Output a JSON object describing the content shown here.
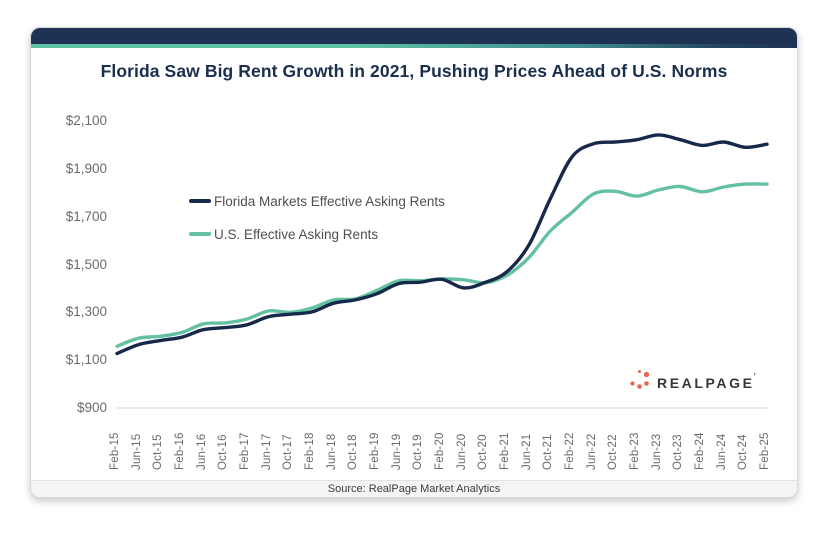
{
  "colors": {
    "header_navy": "#1e3354",
    "accent_teal": "#5ec2a2",
    "title_navy": "#1b2e4d",
    "axis_text_gray": "#6a6a6a",
    "baseline_gray": "#d9d9d9",
    "florida_line": "#16294a",
    "us_line": "#63c1a2",
    "logo_dot_orange": "#e8654c",
    "logo_text_dark": "#33383d"
  },
  "chart_data": {
    "type": "line",
    "title": "Florida Saw Big Rent Growth in 2021, Pushing Prices Ahead of U.S. Norms",
    "xlabel": "",
    "ylabel": "",
    "ylim": [
      900,
      2100
    ],
    "grid": "baseline-only",
    "legend_position": "inside-upper-left",
    "y_ticks": [
      {
        "label": "$900",
        "value": 900
      },
      {
        "label": "$1,100",
        "value": 1100
      },
      {
        "label": "$1,300",
        "value": 1300
      },
      {
        "label": "$1,500",
        "value": 1500
      },
      {
        "label": "$1,700",
        "value": 1700
      },
      {
        "label": "$1,900",
        "value": 1900
      },
      {
        "label": "$2,100",
        "value": 2100
      }
    ],
    "categories": [
      "Feb-15",
      "Jun-15",
      "Oct-15",
      "Feb-16",
      "Jun-16",
      "Oct-16",
      "Feb-17",
      "Jun-17",
      "Oct-17",
      "Feb-18",
      "Jun-18",
      "Oct-18",
      "Feb-19",
      "Jun-19",
      "Oct-19",
      "Feb-20",
      "Jun-20",
      "Oct-20",
      "Feb-21",
      "Jun-21",
      "Oct-21",
      "Feb-22",
      "Jun-22",
      "Oct-22",
      "Feb-23",
      "Jun-23",
      "Oct-23",
      "Feb-24",
      "Jun-24",
      "Oct-24",
      "Feb-25"
    ],
    "series": [
      {
        "name": "Florida Markets Effective Asking Rents",
        "slug": "florida-markets-line",
        "color": "#16294a",
        "values": [
          1128,
          1165,
          1182,
          1196,
          1228,
          1236,
          1248,
          1282,
          1292,
          1302,
          1338,
          1352,
          1378,
          1420,
          1426,
          1438,
          1402,
          1425,
          1470,
          1580,
          1775,
          1950,
          2005,
          2012,
          2022,
          2042,
          2022,
          1998,
          2012,
          1990,
          2003
        ]
      },
      {
        "name": "U.S. Effective Asking Rents",
        "slug": "us-line",
        "color": "#63c1a2",
        "values": [
          1158,
          1192,
          1200,
          1216,
          1252,
          1256,
          1272,
          1306,
          1300,
          1318,
          1352,
          1356,
          1392,
          1432,
          1432,
          1440,
          1436,
          1424,
          1455,
          1528,
          1640,
          1718,
          1795,
          1806,
          1786,
          1812,
          1826,
          1804,
          1824,
          1836,
          1836
        ]
      }
    ]
  },
  "branding": {
    "logo_text": "REALPAGE",
    "logo_tm": "’"
  },
  "footer": {
    "source": "Source: RealPage Market Analytics"
  }
}
